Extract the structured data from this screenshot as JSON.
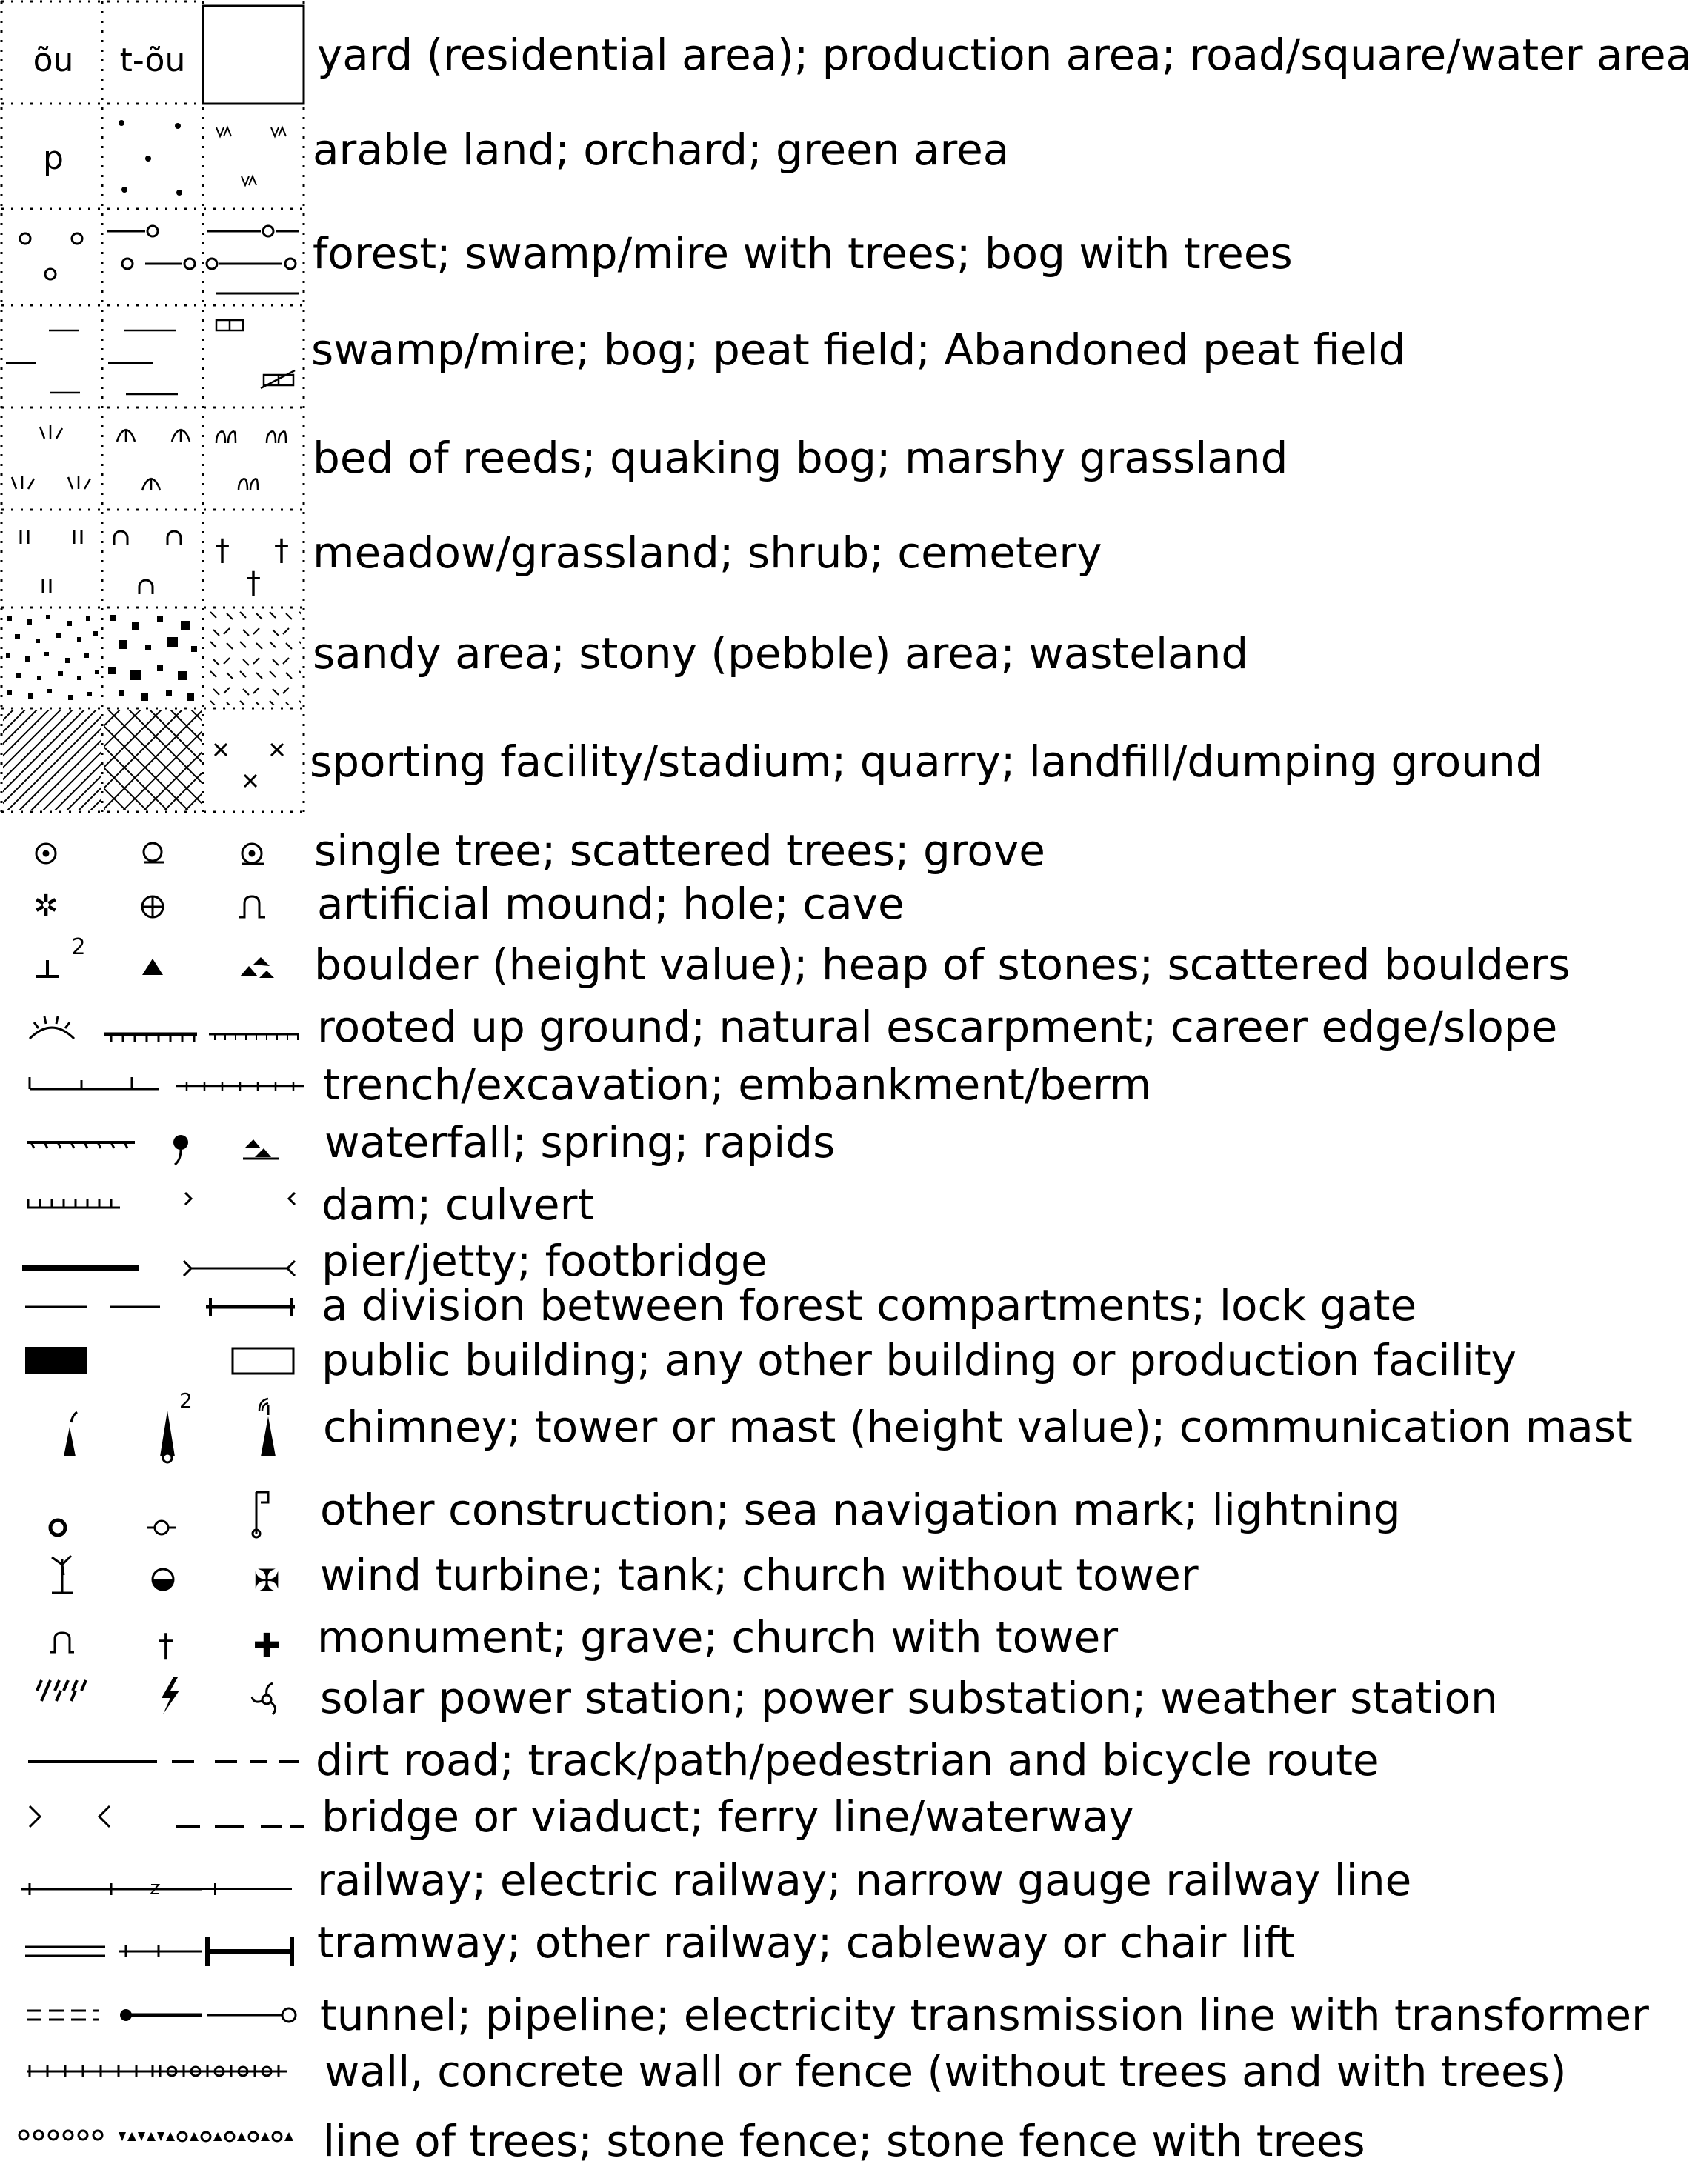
{
  "legend": {
    "area_rows": [
      {
        "label": "yard (residential area); production area; road/square/water area",
        "symbols": [
          "yard-residential-swatch",
          "production-area-swatch",
          "road-square-water-swatch"
        ],
        "swatch_text": [
          "õu",
          "t-õu"
        ]
      },
      {
        "label": "arable land; orchard; green area",
        "symbols": [
          "arable-land-swatch",
          "orchard-swatch",
          "green-area-swatch"
        ],
        "swatch_text": [
          "p"
        ]
      },
      {
        "label": "forest; swamp/mire with trees; bog with trees",
        "symbols": [
          "forest-swatch",
          "swamp-with-trees-swatch",
          "bog-with-trees-swatch"
        ]
      },
      {
        "label": "swamp/mire; bog; peat field; Abandoned peat field",
        "symbols": [
          "swamp-mire-swatch",
          "bog-swatch",
          "peat-field-swatch"
        ]
      },
      {
        "label": "bed of reeds; quaking bog; marshy grassland",
        "symbols": [
          "bed-of-reeds-swatch",
          "quaking-bog-swatch",
          "marshy-grassland-swatch"
        ]
      },
      {
        "label": "meadow/grassland; shrub; cemetery",
        "symbols": [
          "meadow-swatch",
          "shrub-swatch",
          "cemetery-swatch"
        ]
      },
      {
        "label": "sandy area; stony (pebble) area; wasteland",
        "symbols": [
          "sandy-area-swatch",
          "stony-area-swatch",
          "wasteland-swatch"
        ]
      },
      {
        "label": "sporting facility/stadium; quarry; landfill/dumping ground",
        "symbols": [
          "stadium-swatch",
          "quarry-swatch",
          "landfill-swatch"
        ]
      }
    ],
    "symbol_rows": [
      {
        "label": "single tree; scattered trees; grove",
        "symbols": [
          "single-tree-icon",
          "scattered-trees-icon",
          "grove-icon"
        ]
      },
      {
        "label": "artificial mound; hole; cave",
        "symbols": [
          "artificial-mound-icon",
          "hole-icon",
          "cave-icon"
        ]
      },
      {
        "label": "boulder (height value); heap of stones; scattered boulders",
        "symbols": [
          "boulder-icon",
          "heap-of-stones-icon",
          "scattered-boulders-icon"
        ],
        "height_value": "2"
      },
      {
        "label": "rooted up ground;  natural escarpment; career edge/slope",
        "symbols": [
          "rooted-up-ground-icon",
          "natural-escarpment-line",
          "career-edge-line"
        ]
      },
      {
        "label": "trench/excavation; embankment/berm",
        "symbols": [
          "trench-line",
          "embankment-line"
        ]
      },
      {
        "label": "waterfall; spring; rapids",
        "symbols": [
          "waterfall-line",
          "spring-icon",
          "rapids-icon"
        ]
      },
      {
        "label": "dam; culvert",
        "symbols": [
          "dam-line",
          "culvert-icon"
        ]
      },
      {
        "label": "pier/jetty; footbridge",
        "symbols": [
          "pier-line",
          "footbridge-line"
        ]
      },
      {
        "label": "a division between forest compartments;  lock gate",
        "symbols": [
          "forest-division-line",
          "lock-gate-line"
        ]
      },
      {
        "label": "public building; any other building or production facility",
        "symbols": [
          "public-building-icon",
          "other-building-icon"
        ]
      },
      {
        "label": "chimney; tower or mast (height value); communication mast",
        "symbols": [
          "chimney-icon",
          "tower-icon",
          "communication-mast-icon"
        ],
        "height_value": "2"
      },
      {
        "label": "other construction; sea navigation mark; lightning",
        "symbols": [
          "other-construction-icon",
          "sea-navigation-mark-icon",
          "lightning-icon"
        ]
      },
      {
        "label": "wind turbine; tank; church without tower",
        "symbols": [
          "wind-turbine-icon",
          "tank-icon",
          "church-without-tower-icon"
        ]
      },
      {
        "label": "monument; grave; church with tower",
        "symbols": [
          "monument-icon",
          "grave-icon",
          "church-with-tower-icon"
        ]
      },
      {
        "label": "solar power station; power substation; weather station",
        "symbols": [
          "solar-power-station-icon",
          "power-substation-icon",
          "weather-station-icon"
        ]
      },
      {
        "label": "dirt road; track/path/pedestrian and bicycle route",
        "symbols": [
          "dirt-road-line",
          "track-path-line"
        ]
      },
      {
        "label": "bridge or viaduct; ferry line/waterway",
        "symbols": [
          "bridge-icon",
          "ferry-line"
        ]
      },
      {
        "label": "railway; electric railway; narrow gauge railway line",
        "symbols": [
          "railway-line",
          "electric-railway-line",
          "narrow-gauge-railway-line"
        ]
      },
      {
        "label": "tramway; other railway; cableway or chair lift",
        "symbols": [
          "tramway-line",
          "other-railway-line",
          "cableway-line"
        ]
      },
      {
        "label": "tunnel; pipeline; electricity transmission line with transformer",
        "symbols": [
          "tunnel-line",
          "pipeline-line",
          "transmission-line"
        ]
      },
      {
        "label": "wall, concrete wall or fence (without trees and with trees)",
        "symbols": [
          "wall-fence-line",
          "wall-fence-with-trees-line"
        ]
      },
      {
        "label": "line of trees; stone fence; stone fence with trees",
        "symbols": [
          "line-of-trees-line",
          "stone-fence-line",
          "stone-fence-with-trees-line"
        ]
      }
    ]
  }
}
